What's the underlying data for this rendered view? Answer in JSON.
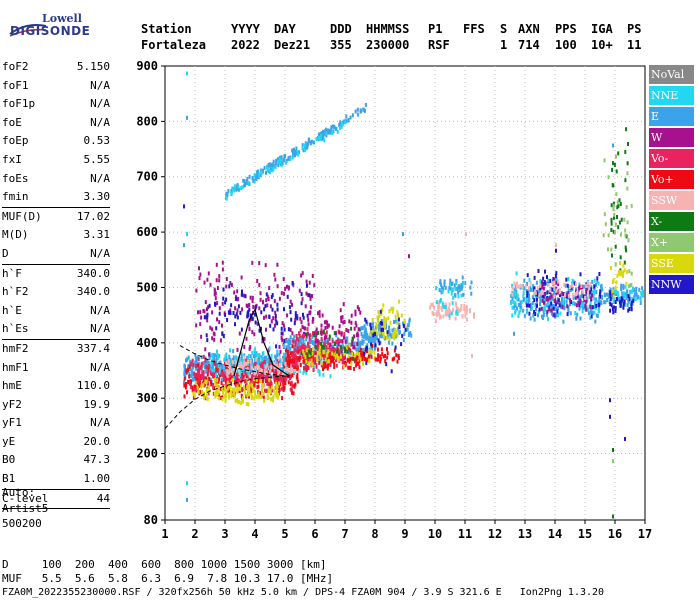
{
  "logo": {
    "line1": "Lowell",
    "line2": "DIGISONDE"
  },
  "header": {
    "labels": [
      "Station",
      "YYYY",
      "DAY",
      "DDD",
      "HHMMSS",
      "P1",
      "FFS",
      "S",
      "AXN",
      "PPS",
      "IGA",
      "PS"
    ],
    "values": [
      "Fortaleza",
      "2022",
      "Dez21",
      "355",
      "230000",
      "RSF",
      "1",
      "714",
      "100",
      "10+",
      "11"
    ]
  },
  "params": [
    {
      "name": "foF2",
      "value": "5.150"
    },
    {
      "name": "foF1",
      "value": "N/A"
    },
    {
      "name": "foF1p",
      "value": "N/A"
    },
    {
      "name": "foE",
      "value": "N/A"
    },
    {
      "name": "foEp",
      "value": "0.53"
    },
    {
      "name": "fxI",
      "value": "5.55"
    },
    {
      "name": "foEs",
      "value": "N/A"
    },
    {
      "name": "fmin",
      "value": "3.30"
    },
    {
      "name": "MUF(D)",
      "value": "17.02"
    },
    {
      "name": "M(D)",
      "value": "3.31"
    },
    {
      "name": "D",
      "value": "N/A"
    },
    {
      "name": "h`F",
      "value": "340.0"
    },
    {
      "name": "h`F2",
      "value": "340.0"
    },
    {
      "name": "h`E",
      "value": "N/A"
    },
    {
      "name": "h`Es",
      "value": "N/A"
    },
    {
      "name": "hmF2",
      "value": "337.4"
    },
    {
      "name": "hmF1",
      "value": "N/A"
    },
    {
      "name": "hmE",
      "value": "110.0"
    },
    {
      "name": "yF2",
      "value": "19.9"
    },
    {
      "name": "yF1",
      "value": "N/A"
    },
    {
      "name": "yE",
      "value": "20.0"
    },
    {
      "name": "B0",
      "value": "47.3"
    },
    {
      "name": "B1",
      "value": "1.00"
    },
    {
      "name": "C-level",
      "value": "44"
    }
  ],
  "auto": {
    "line1": "Auto:",
    "line2": "Artist5",
    "line3": "500200"
  },
  "legend": [
    {
      "label": "NoVal",
      "color": "#888888"
    },
    {
      "label": "NNE",
      "color": "#22d8f0"
    },
    {
      "label": "E",
      "color": "#3aa3ea"
    },
    {
      "label": "W",
      "color": "#a8118e"
    },
    {
      "label": "Vo-",
      "color": "#e8235e"
    },
    {
      "label": "Vo+",
      "color": "#ee0a14"
    },
    {
      "label": "SSW",
      "color": "#f7b2b2"
    },
    {
      "label": "X-",
      "color": "#0d7a14"
    },
    {
      "label": "X+",
      "color": "#8fc870"
    },
    {
      "label": "SSE",
      "color": "#d8d80a"
    },
    {
      "label": "NNW",
      "color": "#2218c8"
    }
  ],
  "footer": {
    "d_row": "D     100  200  400  600  800 1000 1500 3000 [km]",
    "muf_row": "MUF   5.5  5.6  5.8  6.3  6.9  7.8 10.3 17.0 [MHz]",
    "file_row": "FZA0M_2022355230000.RSF / 320fx256h 50 kHz 5.0 km / DPS-4 FZA0M 904 / 3.9 S 321.6 E   Ion2Png 1.3.20"
  },
  "chart_data": {
    "type": "scatter",
    "xlim": [
      1,
      17
    ],
    "ylim": [
      80,
      900
    ],
    "x_ticks": [
      1,
      2,
      3,
      4,
      5,
      6,
      7,
      8,
      9,
      10,
      11,
      12,
      13,
      14,
      15,
      16,
      17
    ],
    "y_ticks": [
      80,
      200,
      300,
      400,
      500,
      600,
      700,
      800,
      900
    ],
    "grid": "dotted",
    "legend_placement": "right",
    "clusters": [
      {
        "series": "E",
        "x": [
          1.6,
          5.0
        ],
        "y": [
          330,
          390
        ],
        "n": 380
      },
      {
        "series": "Vo+",
        "x": [
          1.6,
          5.4
        ],
        "y": [
          300,
          370
        ],
        "n": 260
      },
      {
        "series": "Vo-",
        "x": [
          1.8,
          5.2
        ],
        "y": [
          310,
          380
        ],
        "n": 200
      },
      {
        "series": "SSE",
        "x": [
          1.9,
          4.8
        ],
        "y": [
          290,
          340
        ],
        "n": 150
      },
      {
        "series": "W",
        "x": [
          2.0,
          6.0
        ],
        "y": [
          370,
          560
        ],
        "n": 180
      },
      {
        "series": "NNW",
        "x": [
          2.2,
          5.8
        ],
        "y": [
          390,
          520
        ],
        "n": 90
      },
      {
        "series": "NNE",
        "x": [
          2.5,
          6.5
        ],
        "y": [
          340,
          400
        ],
        "n": 140
      },
      {
        "series": "SSW",
        "x": [
          3.0,
          5.5
        ],
        "y": [
          340,
          380
        ],
        "n": 80
      },
      {
        "series": "E",
        "x": [
          5.0,
          8.0
        ],
        "y": [
          370,
          420
        ],
        "n": 230
      },
      {
        "series": "Vo+",
        "x": [
          5.0,
          7.5
        ],
        "y": [
          350,
          400
        ],
        "n": 170
      },
      {
        "series": "Vo-",
        "x": [
          5.2,
          7.0
        ],
        "y": [
          350,
          430
        ],
        "n": 120
      },
      {
        "series": "W",
        "x": [
          5.5,
          7.5
        ],
        "y": [
          390,
          480
        ],
        "n": 70
      },
      {
        "series": "SSE",
        "x": [
          5.5,
          8.0
        ],
        "y": [
          360,
          400
        ],
        "n": 60
      },
      {
        "series": "X-",
        "x": [
          5.5,
          7.5
        ],
        "y": [
          360,
          440
        ],
        "n": 25
      },
      {
        "series": "E",
        "x": [
          7.5,
          9.2
        ],
        "y": [
          400,
          450
        ],
        "n": 100
      },
      {
        "series": "SSE",
        "x": [
          7.8,
          9.0
        ],
        "y": [
          400,
          480
        ],
        "n": 60
      },
      {
        "series": "Vo+",
        "x": [
          7.5,
          8.8
        ],
        "y": [
          360,
          400
        ],
        "n": 40
      },
      {
        "series": "NNW",
        "x": [
          7.5,
          9.0
        ],
        "y": [
          350,
          480
        ],
        "n": 30
      },
      {
        "series": "SSW",
        "x": [
          9.8,
          11.3
        ],
        "y": [
          440,
          480
        ],
        "n": 70
      },
      {
        "series": "E",
        "x": [
          10.0,
          11.2
        ],
        "y": [
          480,
          525
        ],
        "n": 40
      },
      {
        "series": "NNE",
        "x": [
          10.0,
          11.0
        ],
        "y": [
          440,
          520
        ],
        "n": 25
      },
      {
        "series": "E",
        "x": [
          12.5,
          15.5
        ],
        "y": [
          440,
          520
        ],
        "n": 220
      },
      {
        "series": "NNE",
        "x": [
          12.5,
          15.5
        ],
        "y": [
          440,
          530
        ],
        "n": 100
      },
      {
        "series": "NNW",
        "x": [
          13.0,
          15.5
        ],
        "y": [
          440,
          540
        ],
        "n": 90
      },
      {
        "series": "W",
        "x": [
          13.5,
          15.2
        ],
        "y": [
          450,
          520
        ],
        "n": 50
      },
      {
        "series": "SSW",
        "x": [
          12.5,
          15.2
        ],
        "y": [
          480,
          520
        ],
        "n": 50
      },
      {
        "series": "E",
        "x": [
          15.5,
          17.0
        ],
        "y": [
          470,
          510
        ],
        "n": 70
      },
      {
        "series": "NNE",
        "x": [
          15.8,
          17.0
        ],
        "y": [
          460,
          510
        ],
        "n": 40
      },
      {
        "series": "NNW",
        "x": [
          15.8,
          16.6
        ],
        "y": [
          450,
          500
        ],
        "n": 30
      },
      {
        "series": "X-",
        "x": [
          15.8,
          16.4
        ],
        "y": [
          480,
          820
        ],
        "n": 35
      },
      {
        "series": "X+",
        "x": [
          15.5,
          16.6
        ],
        "y": [
          480,
          760
        ],
        "n": 30
      },
      {
        "series": "SSE",
        "x": [
          15.8,
          16.4
        ],
        "y": [
          480,
          560
        ],
        "n": 20
      }
    ],
    "traces": [
      {
        "series": "E",
        "x": [
          3.0,
          7.7
        ],
        "y": [
          670,
          830
        ],
        "n": 170
      },
      {
        "series": "NNE",
        "x": [
          3.0,
          7.0
        ],
        "y": [
          670,
          800
        ],
        "n": 50
      }
    ],
    "extra_points": [
      {
        "series": "NNE",
        "x": 1.7,
        "y": 890
      },
      {
        "series": "E",
        "x": 1.7,
        "y": 810
      },
      {
        "series": "NNW",
        "x": 1.6,
        "y": 650
      },
      {
        "series": "NNE",
        "x": 1.7,
        "y": 600
      },
      {
        "series": "E",
        "x": 1.6,
        "y": 580
      },
      {
        "series": "E",
        "x": 1.7,
        "y": 120
      },
      {
        "series": "NNE",
        "x": 1.7,
        "y": 150
      },
      {
        "series": "NNW",
        "x": 15.8,
        "y": 300
      },
      {
        "series": "NNW",
        "x": 15.8,
        "y": 270
      },
      {
        "series": "X-",
        "x": 15.9,
        "y": 210
      },
      {
        "series": "X+",
        "x": 15.9,
        "y": 190
      },
      {
        "series": "NNW",
        "x": 16.3,
        "y": 230
      },
      {
        "series": "X-",
        "x": 15.9,
        "y": 90
      },
      {
        "series": "E",
        "x": 16.5,
        "y": 85
      },
      {
        "series": "SSW",
        "x": 11.0,
        "y": 600
      },
      {
        "series": "SSW",
        "x": 14.0,
        "y": 580
      },
      {
        "series": "NNW",
        "x": 14.0,
        "y": 570
      },
      {
        "series": "W",
        "x": 9.1,
        "y": 560
      },
      {
        "series": "E",
        "x": 8.9,
        "y": 600
      },
      {
        "series": "SSW",
        "x": 11.2,
        "y": 380
      },
      {
        "series": "E",
        "x": 12.6,
        "y": 420
      },
      {
        "series": "E",
        "x": 15.9,
        "y": 760
      },
      {
        "series": "X+",
        "x": 16.0,
        "y": 740
      }
    ],
    "profile_curves": [
      {
        "name": "dashed",
        "x": [
          1,
          1.5,
          2.0,
          2.5,
          3.0,
          3.5,
          4.0,
          4.5,
          5.0,
          5.15
        ],
        "y": [
          245,
          275,
          298,
          313,
          322,
          330,
          335,
          338,
          340,
          341
        ]
      },
      {
        "name": "upper",
        "x": [
          1.5,
          2.0,
          2.5,
          3.0,
          3.5,
          4.0,
          4.5,
          5.0,
          5.15
        ],
        "y": [
          395,
          380,
          368,
          360,
          353,
          348,
          343,
          340,
          338
        ]
      }
    ],
    "trace_line": {
      "x": [
        3.3,
        3.5,
        3.8,
        4.0,
        4.3,
        4.6,
        5.0,
        5.15
      ],
      "y": [
        340,
        380,
        440,
        460,
        400,
        360,
        345,
        340
      ]
    }
  }
}
